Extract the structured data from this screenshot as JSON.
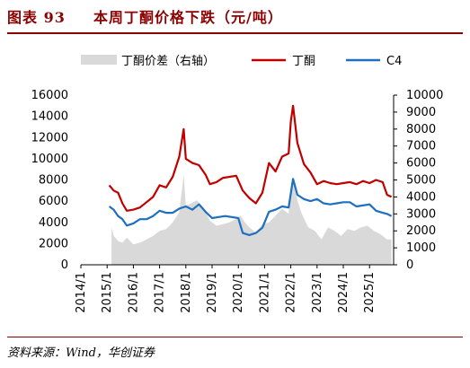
{
  "header": {
    "title_prefix": "图表 93",
    "title_text": "本周丁酮价格下跌（元/吨）"
  },
  "source": {
    "text": "资料来源：Wind，华创证券"
  },
  "colors": {
    "title": "#8b0000",
    "butanone": "#c00000",
    "c4": "#1f6fc1",
    "spread": "#d9d9d9"
  },
  "chart_data": {
    "type": "line",
    "x_ticks": [
      "2014/1",
      "2015/1",
      "2016/1",
      "2017/1",
      "2018/1",
      "2019/1",
      "2020/1",
      "2021/1",
      "2022/1",
      "2023/1",
      "2024/1",
      "2025/1"
    ],
    "x_range": [
      "2014/1",
      "2025/12"
    ],
    "y_left": {
      "ticks": [
        0,
        2000,
        4000,
        6000,
        8000,
        10000,
        12000,
        14000,
        16000
      ],
      "range": [
        0,
        16000
      ]
    },
    "y_right": {
      "ticks": [
        0,
        1000,
        2000,
        3000,
        4000,
        5000,
        6000,
        7000,
        8000,
        9000,
        10000
      ],
      "range": [
        0,
        10000
      ]
    },
    "legend_position": "top",
    "series": [
      {
        "name": "丁酮价差（右轴）",
        "type": "area",
        "axis": "right",
        "color": "#d9d9d9",
        "points": [
          [
            "2015/3",
            2200
          ],
          [
            "2015/4",
            1700
          ],
          [
            "2015/6",
            1400
          ],
          [
            "2015/8",
            1300
          ],
          [
            "2015/10",
            1600
          ],
          [
            "2016/1",
            1200
          ],
          [
            "2016/4",
            1300
          ],
          [
            "2016/7",
            1500
          ],
          [
            "2016/10",
            1700
          ],
          [
            "2017/1",
            2000
          ],
          [
            "2017/4",
            2100
          ],
          [
            "2017/7",
            2500
          ],
          [
            "2017/10",
            3100
          ],
          [
            "2017/12",
            5300
          ],
          [
            "2018/1",
            3500
          ],
          [
            "2018/3",
            3600
          ],
          [
            "2018/6",
            3800
          ],
          [
            "2018/9",
            3400
          ],
          [
            "2018/12",
            2600
          ],
          [
            "2019/3",
            2300
          ],
          [
            "2019/6",
            2400
          ],
          [
            "2019/9",
            2500
          ],
          [
            "2019/12",
            2700
          ],
          [
            "2020/2",
            2900
          ],
          [
            "2020/4",
            2500
          ],
          [
            "2020/6",
            2200
          ],
          [
            "2020/9",
            1900
          ],
          [
            "2020/12",
            2400
          ],
          [
            "2021/3",
            2500
          ],
          [
            "2021/6",
            2900
          ],
          [
            "2021/9",
            3300
          ],
          [
            "2021/12",
            3000
          ],
          [
            "2022/1",
            4700
          ],
          [
            "2022/2",
            5200
          ],
          [
            "2022/4",
            3800
          ],
          [
            "2022/6",
            3000
          ],
          [
            "2022/9",
            2200
          ],
          [
            "2022/12",
            2000
          ],
          [
            "2023/3",
            1500
          ],
          [
            "2023/6",
            2200
          ],
          [
            "2023/9",
            2000
          ],
          [
            "2023/12",
            1700
          ],
          [
            "2024/3",
            2100
          ],
          [
            "2024/6",
            2000
          ],
          [
            "2024/9",
            2200
          ],
          [
            "2024/12",
            2300
          ],
          [
            "2025/3",
            2000
          ],
          [
            "2025/6",
            1800
          ],
          [
            "2025/9",
            1500
          ],
          [
            "2025/11",
            1500
          ]
        ]
      },
      {
        "name": "丁酮",
        "type": "line",
        "axis": "left",
        "color": "#c00000",
        "points": [
          [
            "2015/2",
            7500
          ],
          [
            "2015/4",
            7000
          ],
          [
            "2015/6",
            6800
          ],
          [
            "2015/8",
            5800
          ],
          [
            "2015/10",
            5100
          ],
          [
            "2016/1",
            5200
          ],
          [
            "2016/4",
            5400
          ],
          [
            "2016/7",
            5900
          ],
          [
            "2016/10",
            6400
          ],
          [
            "2017/1",
            7500
          ],
          [
            "2017/4",
            7300
          ],
          [
            "2017/7",
            8300
          ],
          [
            "2017/10",
            10200
          ],
          [
            "2017/12",
            12800
          ],
          [
            "2018/1",
            10000
          ],
          [
            "2018/4",
            9600
          ],
          [
            "2018/7",
            9400
          ],
          [
            "2018/10",
            8500
          ],
          [
            "2018/12",
            7600
          ],
          [
            "2019/3",
            7800
          ],
          [
            "2019/6",
            8200
          ],
          [
            "2019/9",
            8300
          ],
          [
            "2019/12",
            8400
          ],
          [
            "2020/3",
            7000
          ],
          [
            "2020/6",
            6300
          ],
          [
            "2020/9",
            5800
          ],
          [
            "2020/12",
            6800
          ],
          [
            "2021/3",
            9600
          ],
          [
            "2021/6",
            8800
          ],
          [
            "2021/9",
            10200
          ],
          [
            "2021/12",
            10500
          ],
          [
            "2022/1",
            13500
          ],
          [
            "2022/2",
            15000
          ],
          [
            "2022/4",
            11500
          ],
          [
            "2022/7",
            9500
          ],
          [
            "2022/10",
            8700
          ],
          [
            "2023/1",
            7600
          ],
          [
            "2023/4",
            7900
          ],
          [
            "2023/7",
            7700
          ],
          [
            "2023/10",
            7600
          ],
          [
            "2024/1",
            7700
          ],
          [
            "2024/4",
            7800
          ],
          [
            "2024/7",
            7600
          ],
          [
            "2024/10",
            7900
          ],
          [
            "2025/1",
            7700
          ],
          [
            "2025/4",
            8000
          ],
          [
            "2025/7",
            7800
          ],
          [
            "2025/9",
            6600
          ],
          [
            "2025/11",
            6400
          ]
        ]
      },
      {
        "name": "C4",
        "type": "line",
        "axis": "left",
        "color": "#1f6fc1",
        "points": [
          [
            "2015/2",
            5500
          ],
          [
            "2015/4",
            5200
          ],
          [
            "2015/6",
            4600
          ],
          [
            "2015/8",
            4300
          ],
          [
            "2015/10",
            3700
          ],
          [
            "2016/1",
            3900
          ],
          [
            "2016/4",
            4300
          ],
          [
            "2016/7",
            4300
          ],
          [
            "2016/10",
            4600
          ],
          [
            "2017/1",
            5100
          ],
          [
            "2017/4",
            4900
          ],
          [
            "2017/7",
            4900
          ],
          [
            "2017/10",
            5300
          ],
          [
            "2018/1",
            5500
          ],
          [
            "2018/4",
            5200
          ],
          [
            "2018/7",
            5700
          ],
          [
            "2018/10",
            5000
          ],
          [
            "2019/1",
            4400
          ],
          [
            "2019/4",
            4500
          ],
          [
            "2019/7",
            4600
          ],
          [
            "2019/10",
            4500
          ],
          [
            "2020/1",
            4400
          ],
          [
            "2020/3",
            3000
          ],
          [
            "2020/6",
            2800
          ],
          [
            "2020/9",
            3000
          ],
          [
            "2020/12",
            3500
          ],
          [
            "2021/3",
            5000
          ],
          [
            "2021/6",
            5200
          ],
          [
            "2021/9",
            5500
          ],
          [
            "2021/12",
            5400
          ],
          [
            "2022/2",
            8100
          ],
          [
            "2022/4",
            6600
          ],
          [
            "2022/7",
            6200
          ],
          [
            "2022/10",
            6000
          ],
          [
            "2023/1",
            6200
          ],
          [
            "2023/4",
            5800
          ],
          [
            "2023/7",
            5700
          ],
          [
            "2023/10",
            5800
          ],
          [
            "2024/1",
            5900
          ],
          [
            "2024/4",
            5900
          ],
          [
            "2024/7",
            5500
          ],
          [
            "2024/10",
            5600
          ],
          [
            "2025/1",
            5700
          ],
          [
            "2025/4",
            5100
          ],
          [
            "2025/7",
            4900
          ],
          [
            "2025/9",
            4800
          ],
          [
            "2025/11",
            4600
          ]
        ]
      }
    ]
  }
}
